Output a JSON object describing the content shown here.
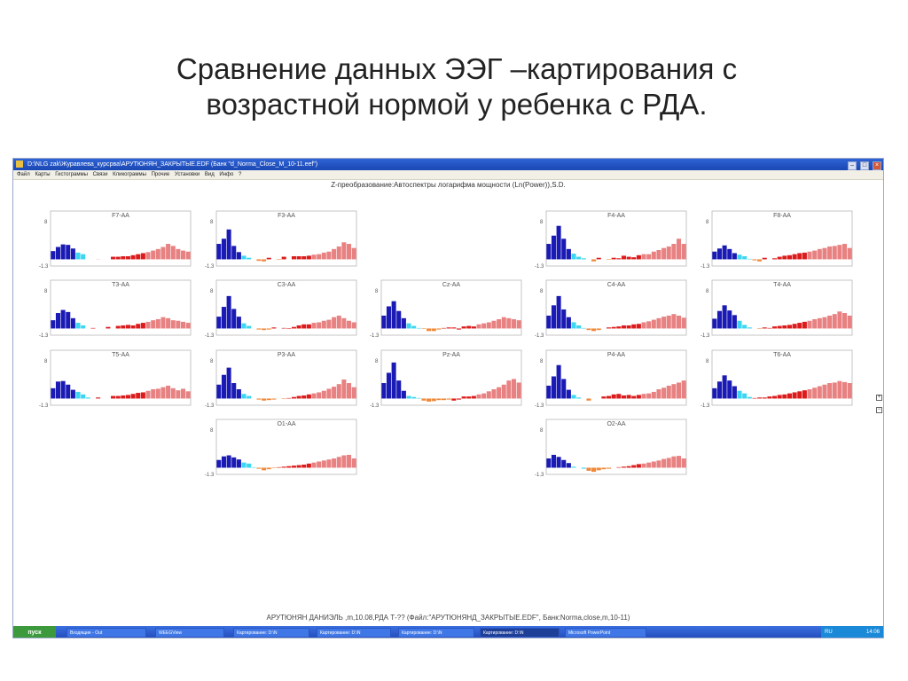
{
  "slide": {
    "title_line1": "Сравнение данных ЭЭГ –картирования с",
    "title_line2": "возрастной нормой  у ребенка с РДА."
  },
  "window": {
    "title": "D:\\NLG zak\\Журавлева_курсрва\\АРУТЮНЯН_ЗАКРЫТЫЕ.EDF (Банк \"d_Norma_Close_M_10-11.eef\")",
    "menu": [
      "Файл",
      "Карты",
      "Гистограммы",
      "Связи",
      "Кликограммы",
      "Прочие",
      "Установки",
      "Вид",
      "Инфо",
      "?"
    ],
    "panel_heading": "Z-преобразование:Автоспектры логарифма мощности (Ln(Power)),S.D.",
    "status_line": "АРУТЮНЯН ДАНИЭЛЬ ,m,10.08,РДА Т-?? (Файл:\"АРУТЮНЯНД_ЗАКРЫТЫЕ.EDF\", Банк:Norma,close,m,10-11)",
    "controls": {
      "minimize": "–",
      "maximize": "□",
      "close": "×"
    },
    "side_icons": [
      "+",
      "−"
    ]
  },
  "taskbar": {
    "start": "пуск",
    "items": [
      "Входящие - Out",
      "WEEGView",
      "Картирование: D:\\N",
      "Картирование: D:\\N",
      "Картирование: D:\\N",
      "Картирование: D:\\N",
      "Microsoft PowerPoint"
    ],
    "active_index": 5,
    "lang": "RU",
    "clock": "14:06"
  },
  "colors": {
    "alpha_dark": "#1a1ab4",
    "alpha_light": "#3cd6f0",
    "theta_orange": "#f0883a",
    "beta_red": "#dc1c1c",
    "beta_pink": "#e88282"
  },
  "chart_data": {
    "type": "bar",
    "ylim": [
      -1.3,
      8
    ],
    "ytick_labels": [
      "8",
      "-1.3"
    ],
    "charts": [
      {
        "label": "F7-AA",
        "values": [
          1.6,
          2.4,
          2.9,
          2.8,
          2.1,
          1.3,
          1.0,
          0,
          0,
          0.02,
          0,
          0,
          0.5,
          0.5,
          0.6,
          0.6,
          0.8,
          1.0,
          1.2,
          1.4,
          1.7,
          2.0,
          2.4,
          3.0,
          2.6,
          2.0,
          1.7,
          1.5
        ]
      },
      {
        "label": "F3-AA",
        "values": [
          3.0,
          4.0,
          5.8,
          2.6,
          1.4,
          0.7,
          0.3,
          0,
          -0.3,
          -0.4,
          0.3,
          0,
          -0.1,
          0.5,
          0,
          0.6,
          0.6,
          0.6,
          0.7,
          0.9,
          1.0,
          1.3,
          1.5,
          2.0,
          2.5,
          3.3,
          3.0,
          2.2
        ]
      },
      {
        "label": "F4-AA",
        "values": [
          3.0,
          4.6,
          6.5,
          4.0,
          2.0,
          1.1,
          0.5,
          0.2,
          0,
          -0.4,
          0.3,
          0,
          -0.1,
          0.3,
          0.2,
          0.7,
          0.5,
          0.4,
          0.8,
          1.0,
          1.0,
          1.5,
          1.8,
          2.2,
          2.5,
          3.0,
          4.0,
          3.0
        ]
      },
      {
        "label": "F8-AA",
        "values": [
          1.5,
          2.1,
          2.7,
          2.0,
          1.2,
          0.9,
          0.6,
          0.1,
          -0.2,
          -0.4,
          0.3,
          0,
          0.2,
          0.5,
          0.7,
          0.8,
          1.0,
          1.2,
          1.3,
          1.5,
          1.7,
          2.0,
          2.2,
          2.5,
          2.6,
          2.8,
          3.0,
          2.2
        ]
      },
      {
        "label": "T3-AA",
        "values": [
          1.6,
          3.0,
          3.6,
          3.2,
          2.0,
          1.1,
          0.6,
          0,
          0.1,
          0,
          0,
          0.3,
          0,
          0.5,
          0.6,
          0.7,
          0.6,
          0.9,
          1.1,
          1.3,
          1.6,
          1.8,
          2.2,
          2.0,
          1.6,
          1.5,
          1.3,
          1.1
        ]
      },
      {
        "label": "C3-AA",
        "values": [
          2.3,
          4.2,
          6.3,
          3.8,
          2.3,
          1.0,
          0.5,
          0,
          -0.2,
          -0.3,
          -0.2,
          0.2,
          0,
          0.1,
          -0.1,
          0.3,
          0.6,
          0.8,
          0.8,
          1.1,
          1.2,
          1.5,
          1.7,
          2.2,
          2.5,
          2.0,
          1.5,
          1.2
        ]
      },
      {
        "label": "Cz-AA",
        "values": [
          2.5,
          4.3,
          5.3,
          3.4,
          2.0,
          1.0,
          0.5,
          0.1,
          -0.1,
          -0.5,
          -0.5,
          -0.2,
          0.1,
          0.2,
          0.2,
          -0.2,
          0.4,
          0.5,
          0.4,
          0.8,
          1.0,
          1.2,
          1.5,
          1.8,
          2.2,
          2.0,
          1.8,
          1.6
        ]
      },
      {
        "label": "C4-AA",
        "values": [
          2.5,
          4.5,
          6.3,
          3.7,
          2.2,
          1.2,
          0.6,
          0.1,
          -0.3,
          -0.5,
          -0.3,
          0,
          0.2,
          0.3,
          0.4,
          0.6,
          0.6,
          0.8,
          0.9,
          1.2,
          1.4,
          1.7,
          2.0,
          2.3,
          2.5,
          2.8,
          2.5,
          2.1
        ]
      },
      {
        "label": "T4-AA",
        "values": [
          1.9,
          3.4,
          4.5,
          3.5,
          2.6,
          1.5,
          0.7,
          0.2,
          0,
          -0.1,
          0.2,
          0.1,
          0.4,
          0.5,
          0.6,
          0.7,
          0.9,
          1.1,
          1.3,
          1.5,
          1.8,
          2.0,
          2.2,
          2.5,
          2.8,
          3.3,
          3.0,
          2.5
        ]
      },
      {
        "label": "T5-AA",
        "values": [
          2.0,
          3.3,
          3.4,
          2.7,
          1.7,
          1.3,
          0.8,
          0.2,
          0,
          0.2,
          0,
          0,
          0.5,
          0.5,
          0.6,
          0.7,
          0.9,
          1.1,
          1.2,
          1.5,
          1.8,
          1.9,
          2.2,
          2.5,
          2.0,
          1.6,
          1.9,
          1.4
        ]
      },
      {
        "label": "P3-AA",
        "values": [
          2.7,
          4.6,
          6.0,
          3.0,
          1.8,
          0.9,
          0.5,
          0,
          -0.2,
          -0.4,
          -0.3,
          -0.2,
          0,
          -0.1,
          0.1,
          0.3,
          0.5,
          0.6,
          0.8,
          1.0,
          1.2,
          1.5,
          1.9,
          2.3,
          2.8,
          3.7,
          3.0,
          2.2
        ]
      },
      {
        "label": "Pz-AA",
        "values": [
          3.0,
          5.0,
          7.0,
          3.5,
          1.5,
          0.5,
          0.3,
          0.1,
          -0.4,
          -0.6,
          -0.5,
          -0.3,
          -0.3,
          -0.2,
          -0.4,
          -0.2,
          0.4,
          0.4,
          0.5,
          0.8,
          1.0,
          1.4,
          1.8,
          2.2,
          2.7,
          3.5,
          3.8,
          3.1
        ]
      },
      {
        "label": "P4-AA",
        "values": [
          2.5,
          4.3,
          6.5,
          3.8,
          1.7,
          0.7,
          0.2,
          0,
          -0.4,
          0,
          0,
          0.4,
          0.5,
          0.8,
          0.9,
          0.6,
          0.7,
          0.5,
          0.7,
          0.9,
          1.0,
          1.3,
          1.8,
          2.1,
          2.5,
          2.8,
          3.1,
          3.5
        ]
      },
      {
        "label": "T6-AA",
        "values": [
          2.0,
          3.3,
          4.5,
          3.5,
          2.4,
          1.5,
          1.0,
          0.3,
          0.1,
          0.2,
          0.2,
          0.4,
          0.5,
          0.7,
          0.8,
          1.0,
          1.2,
          1.4,
          1.6,
          1.8,
          2.1,
          2.4,
          2.7,
          3.0,
          3.1,
          3.4,
          3.2,
          3.0
        ]
      },
      {
        "label": "O1-AA",
        "values": [
          1.5,
          2.2,
          2.4,
          2.0,
          1.6,
          1.0,
          0.8,
          0.1,
          -0.2,
          -0.5,
          -0.3,
          -0.1,
          0.1,
          0.2,
          0.3,
          0.4,
          0.5,
          0.6,
          0.8,
          1.0,
          1.2,
          1.4,
          1.6,
          1.8,
          2.1,
          2.4,
          2.5,
          1.8
        ]
      },
      {
        "label": "O2-AA",
        "values": [
          1.8,
          2.5,
          2.1,
          1.5,
          0.9,
          0.2,
          0,
          -0.2,
          -0.6,
          -0.8,
          -0.5,
          -0.3,
          -0.2,
          0,
          0.1,
          0.2,
          0.3,
          0.5,
          0.7,
          0.8,
          1.0,
          1.2,
          1.4,
          1.7,
          1.9,
          2.2,
          2.3,
          1.8
        ]
      }
    ]
  }
}
